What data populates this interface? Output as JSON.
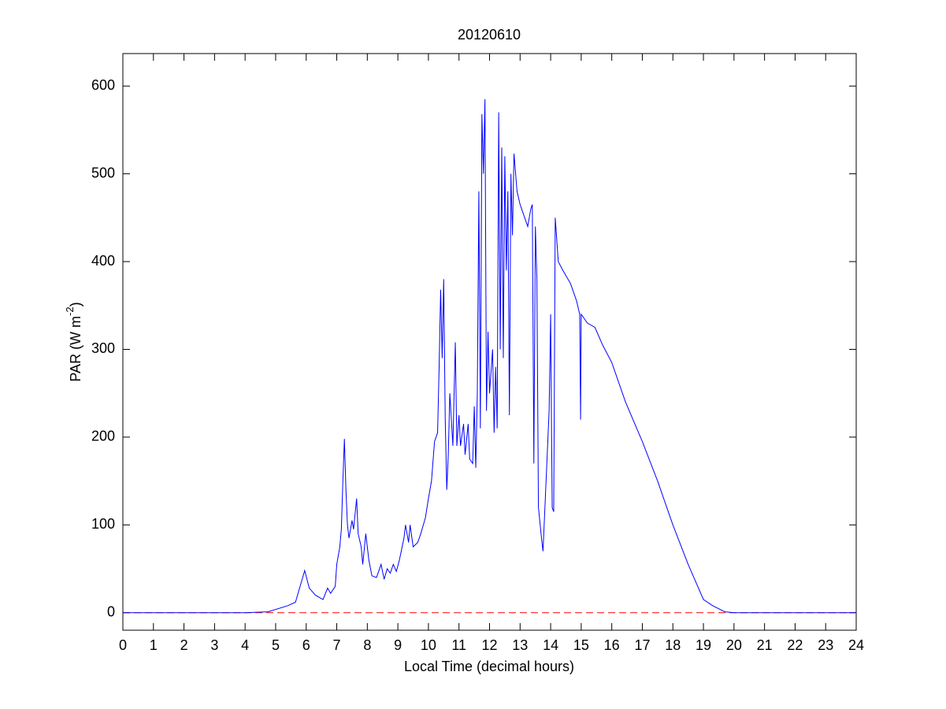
{
  "chart_data": {
    "type": "line",
    "title": "20120610",
    "xlabel": "Local Time (decimal hours)",
    "ylabel": [
      "PAR (W m",
      "-2",
      ")"
    ],
    "xlim": [
      0,
      24
    ],
    "xticks": [
      0,
      1,
      2,
      3,
      4,
      5,
      6,
      7,
      8,
      9,
      10,
      11,
      12,
      13,
      14,
      15,
      16,
      17,
      18,
      19,
      20,
      21,
      22,
      23,
      24
    ],
    "ylim": [
      -20,
      637
    ],
    "yticks": [
      0,
      100,
      200,
      300,
      400,
      500,
      600
    ],
    "hline": {
      "value": 0,
      "color": "#ff0000",
      "style": "dashed"
    },
    "x": [
      0,
      4,
      4.75,
      5.4,
      5.65,
      5.8,
      5.95,
      6.1,
      6.3,
      6.55,
      6.7,
      6.8,
      6.95,
      7,
      7.1,
      7.15,
      7.2,
      7.25,
      7.3,
      7.35,
      7.4,
      7.5,
      7.55,
      7.65,
      7.7,
      7.8,
      7.85,
      7.95,
      8.05,
      8.15,
      8.3,
      8.45,
      8.55,
      8.65,
      8.75,
      8.85,
      8.95,
      9.05,
      9.2,
      9.25,
      9.35,
      9.4,
      9.5,
      9.65,
      9.75,
      9.9,
      10,
      10.1,
      10.2,
      10.3,
      10.35,
      10.4,
      10.45,
      10.5,
      10.55,
      10.6,
      10.65,
      10.7,
      10.75,
      10.8,
      10.88,
      10.93,
      11,
      11.05,
      11.15,
      11.2,
      11.3,
      11.35,
      11.45,
      11.5,
      11.55,
      11.6,
      11.65,
      11.7,
      11.75,
      11.8,
      11.85,
      11.9,
      11.95,
      12,
      12.1,
      12.15,
      12.2,
      12.25,
      12.3,
      12.35,
      12.4,
      12.45,
      12.5,
      12.55,
      12.6,
      12.65,
      12.7,
      12.75,
      12.8,
      12.9,
      13,
      13.1,
      13.25,
      13.35,
      13.4,
      13.45,
      13.5,
      13.55,
      13.6,
      13.7,
      13.75,
      13.8,
      13.95,
      14,
      14.05,
      14.1,
      14.15,
      14.25,
      14.4,
      14.65,
      14.85,
      14.95,
      14.98,
      15,
      15.2,
      15.45,
      15.7,
      16,
      16.45,
      17,
      17.5,
      18,
      18.5,
      19,
      19.3,
      19.7,
      20,
      24
    ],
    "series": [
      {
        "color": "#0000ff",
        "values": [
          0,
          0,
          1,
          8,
          12,
          30,
          48,
          28,
          20,
          15,
          28,
          22,
          30,
          55,
          75,
          95,
          150,
          198,
          140,
          100,
          85,
          105,
          95,
          130,
          90,
          75,
          55,
          90,
          60,
          42,
          40,
          55,
          38,
          50,
          45,
          55,
          47,
          60,
          85,
          100,
          80,
          100,
          75,
          80,
          90,
          108,
          130,
          150,
          195,
          205,
          280,
          368,
          290,
          380,
          220,
          140,
          180,
          250,
          220,
          190,
          308,
          190,
          225,
          190,
          215,
          180,
          215,
          175,
          170,
          235,
          165,
          250,
          480,
          210,
          568,
          500,
          585,
          230,
          320,
          250,
          300,
          205,
          280,
          210,
          570,
          300,
          530,
          290,
          520,
          390,
          480,
          225,
          500,
          430,
          523,
          480,
          465,
          455,
          440,
          460,
          465,
          170,
          440,
          380,
          120,
          85,
          70,
          110,
          230,
          340,
          120,
          115,
          450,
          400,
          390,
          375,
          355,
          340,
          220,
          340,
          330,
          325,
          305,
          285,
          240,
          195,
          150,
          100,
          55,
          15,
          8,
          1,
          0,
          0
        ]
      }
    ]
  }
}
